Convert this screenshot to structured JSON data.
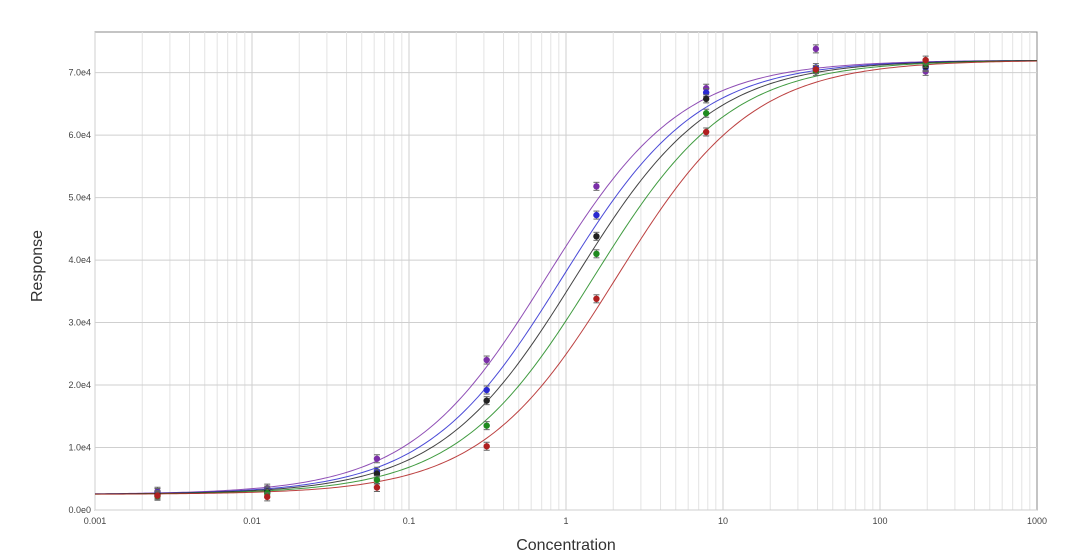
{
  "chart_data": {
    "type": "scatter",
    "title": "",
    "xlabel": "Concentration",
    "ylabel": "Response",
    "x_scale": "log",
    "xlim": [
      0.001,
      1000
    ],
    "ylim": [
      0,
      76500
    ],
    "grid": true,
    "x_ticks": [
      0.001,
      0.01,
      0.1,
      1,
      10,
      100,
      1000
    ],
    "x_tick_labels": [
      "0.001",
      "0.01",
      "0.1",
      "1",
      "10",
      "100",
      "1000"
    ],
    "y_ticks": [
      0,
      10000,
      20000,
      30000,
      40000,
      50000,
      60000,
      70000
    ],
    "y_tick_labels": [
      "0.0e0",
      "1.0e4",
      "2.0e4",
      "3.0e4",
      "4.0e4",
      "5.0e4",
      "6.0e4",
      "7.0e4"
    ],
    "x": [
      0.0025,
      0.0125,
      0.0625,
      0.3125,
      1.5625,
      7.8125,
      39.0625,
      195.3125
    ],
    "series": [
      {
        "color": "#7b2fa8",
        "values": [
          3000,
          3500,
          8200,
          24000,
          51800,
          67500,
          73800,
          70200
        ],
        "fit": {
          "bottom": 2500,
          "top": 72000,
          "ec50": 0.75,
          "hill": 1.0
        }
      },
      {
        "color": "#2a2ad0",
        "values": [
          2800,
          3200,
          6200,
          19200,
          47200,
          66800,
          70800,
          70800
        ],
        "fit": {
          "bottom": 2500,
          "top": 72000,
          "ec50": 0.95,
          "hill": 1.0
        }
      },
      {
        "color": "#222222",
        "values": [
          2500,
          3000,
          5800,
          17500,
          43800,
          65800,
          70500,
          71000
        ],
        "fit": {
          "bottom": 2500,
          "top": 72000,
          "ec50": 1.15,
          "hill": 1.0
        }
      },
      {
        "color": "#1e8a1e",
        "values": [
          2200,
          2700,
          4800,
          13500,
          41000,
          63500,
          70200,
          71500
        ],
        "fit": {
          "bottom": 2500,
          "top": 72000,
          "ec50": 1.5,
          "hill": 1.0
        }
      },
      {
        "color": "#b02020",
        "values": [
          2300,
          2100,
          3600,
          10200,
          33800,
          60500,
          70500,
          72000
        ],
        "fit": {
          "bottom": 2500,
          "top": 72000,
          "ec50": 2.1,
          "hill": 1.0
        }
      }
    ]
  }
}
